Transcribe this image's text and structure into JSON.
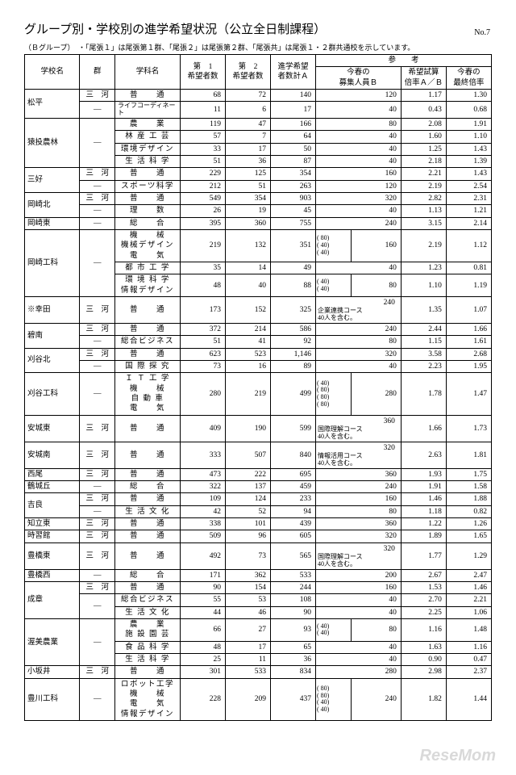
{
  "title": "グループ別・学校別の進学希望状況（公立全日制課程）",
  "page_no": "No.7",
  "note": "（Ｂグループ）　・「尾張１」は尾張第１群、「尾張２」は尾張第２群、「尾張共」は尾張１・２群共通校を示しています。",
  "headers": {
    "school": "学校名",
    "grp": "群",
    "dept": "学科名",
    "c1a": "第　1",
    "c1b": "希望者数",
    "c2a": "第　2",
    "c2b": "希望者数",
    "c3a": "進学希望",
    "c3b": "者数計Ａ",
    "ref": "参　　考",
    "r1a": "今春の",
    "r1b": "募集人員Ｂ",
    "r2a": "希望試算",
    "r2b": "倍率Ａ／Ｂ",
    "r3a": "今春の",
    "r3b": "最終倍率"
  },
  "watermark": "ReseMom",
  "rows": [
    {
      "school": "松平",
      "sr": 2,
      "grp": "三　河",
      "dept": "普　　通",
      "c1": "68",
      "c2": "72",
      "a": "140",
      "b": "120",
      "r": "1.17",
      "f": "1.30"
    },
    {
      "grp": "—",
      "dept": "ライフコーディネート",
      "dsm": 1,
      "c1": "11",
      "c2": "6",
      "a": "17",
      "b": "40",
      "r": "0.43",
      "f": "0.68"
    },
    {
      "school": "猿投農林",
      "sr": 4,
      "grp": "—",
      "gr": 4,
      "dept": "農　　業",
      "c1": "119",
      "c2": "47",
      "a": "166",
      "b": "80",
      "r": "2.08",
      "f": "1.91"
    },
    {
      "dept": "林 産 工 芸",
      "c1": "57",
      "c2": "7",
      "a": "64",
      "b": "40",
      "r": "1.60",
      "f": "1.10"
    },
    {
      "dept": "環境デザイン",
      "c1": "33",
      "c2": "17",
      "a": "50",
      "b": "40",
      "r": "1.25",
      "f": "1.43"
    },
    {
      "dept": "生 活 科 学",
      "c1": "51",
      "c2": "36",
      "a": "87",
      "b": "40",
      "r": "2.18",
      "f": "1.39"
    },
    {
      "school": "三好",
      "sr": 2,
      "grp": "三　河",
      "dept": "普　　通",
      "c1": "229",
      "c2": "125",
      "a": "354",
      "b": "160",
      "r": "2.21",
      "f": "1.43"
    },
    {
      "grp": "—",
      "dept": "スポーツ科学",
      "c1": "212",
      "c2": "51",
      "a": "263",
      "b": "120",
      "r": "2.19",
      "f": "2.54"
    },
    {
      "school": "岡崎北",
      "sr": 2,
      "grp": "三　河",
      "dept": "普　　通",
      "c1": "549",
      "c2": "354",
      "a": "903",
      "b": "320",
      "r": "2.82",
      "f": "2.31"
    },
    {
      "grp": "—",
      "dept": "理　　数",
      "c1": "26",
      "c2": "19",
      "a": "45",
      "b": "40",
      "r": "1.13",
      "f": "1.21"
    },
    {
      "school": "岡崎東",
      "grp": "—",
      "dept": "総　　合",
      "c1": "395",
      "c2": "360",
      "a": "755",
      "b": "240",
      "r": "3.15",
      "f": "2.14"
    },
    {
      "school": "岡崎工科",
      "sr": 3,
      "grp": "—",
      "gr": 3,
      "dept": "機　　械<br>機械デザイン<br>電　　気",
      "dtall": 1,
      "c1": "219",
      "c2": "132",
      "a": "351",
      "b": "160",
      "btxt": "( 80)<br>( 40)<br>( 40)",
      "r": "2.19",
      "f": "1.12"
    },
    {
      "dept": "都 市 工 学",
      "c1": "35",
      "c2": "14",
      "a": "49",
      "b": "40",
      "r": "1.23",
      "f": "0.81"
    },
    {
      "dept": "環 境 科 学<br>情報デザイン",
      "dtall": 1,
      "c1": "48",
      "c2": "40",
      "a": "88",
      "b": "80",
      "btxt": "( 40)<br>( 40)",
      "r": "1.10",
      "f": "1.19"
    },
    {
      "school": "※幸田",
      "grp": "三　河",
      "dept": "普　　通",
      "c1": "173",
      "c2": "152",
      "a": "325",
      "b": "240",
      "bsub": "企業連携コース<br>40人を含む。",
      "r": "1.35",
      "f": "1.07"
    },
    {
      "school": "碧南",
      "sr": 2,
      "grp": "三　河",
      "dept": "普　　通",
      "c1": "372",
      "c2": "214",
      "a": "586",
      "b": "240",
      "r": "2.44",
      "f": "1.66"
    },
    {
      "grp": "—",
      "dept": "総合ビジネス",
      "c1": "51",
      "c2": "41",
      "a": "92",
      "b": "80",
      "r": "1.15",
      "f": "1.61"
    },
    {
      "school": "刈谷北",
      "sr": 2,
      "grp": "三　河",
      "dept": "普　　通",
      "c1": "623",
      "c2": "523",
      "a": "1,146",
      "b": "320",
      "r": "3.58",
      "f": "2.68"
    },
    {
      "grp": "—",
      "dept": "国 際 探 究",
      "c1": "73",
      "c2": "16",
      "a": "89",
      "b": "40",
      "r": "2.23",
      "f": "1.95"
    },
    {
      "school": "刈谷工科",
      "grp": "—",
      "dept": "Ｉ Ｔ 工 学<br>機　　械<br>自 動 車<br>電　　気",
      "dtall": 1,
      "c1": "280",
      "c2": "219",
      "a": "499",
      "b": "280",
      "btxt": "( 40)<br>( 80)<br>( 80)<br>( 80)",
      "r": "1.78",
      "f": "1.47"
    },
    {
      "school": "安城東",
      "grp": "三　河",
      "dept": "普　　通",
      "c1": "409",
      "c2": "190",
      "a": "599",
      "b": "360",
      "bsub": "国際理解コース<br>40人を含む。",
      "r": "1.66",
      "f": "1.73"
    },
    {
      "school": "安城南",
      "grp": "三　河",
      "dept": "普　　通",
      "c1": "333",
      "c2": "507",
      "a": "840",
      "b": "320",
      "bsub": "情報活用コース<br>40人を含む。",
      "r": "2.63",
      "f": "1.81"
    },
    {
      "school": "西尾",
      "grp": "三　河",
      "dept": "普　　通",
      "c1": "473",
      "c2": "222",
      "a": "695",
      "b": "360",
      "r": "1.93",
      "f": "1.75"
    },
    {
      "school": "鶴城丘",
      "grp": "—",
      "dept": "総　　合",
      "c1": "322",
      "c2": "137",
      "a": "459",
      "b": "240",
      "r": "1.91",
      "f": "1.58"
    },
    {
      "school": "吉良",
      "sr": 2,
      "grp": "三　河",
      "dept": "普　　通",
      "c1": "109",
      "c2": "124",
      "a": "233",
      "b": "160",
      "r": "1.46",
      "f": "1.88"
    },
    {
      "grp": "—",
      "dept": "生 活 文 化",
      "c1": "42",
      "c2": "52",
      "a": "94",
      "b": "80",
      "r": "1.18",
      "f": "0.82"
    },
    {
      "school": "知立東",
      "grp": "三　河",
      "dept": "普　　通",
      "c1": "338",
      "c2": "101",
      "a": "439",
      "b": "360",
      "r": "1.22",
      "f": "1.26"
    },
    {
      "school": "時習館",
      "grp": "三　河",
      "dept": "普　　通",
      "c1": "509",
      "c2": "96",
      "a": "605",
      "b": "320",
      "r": "1.89",
      "f": "1.65"
    },
    {
      "school": "豊橋東",
      "grp": "三　河",
      "dept": "普　　通",
      "c1": "492",
      "c2": "73",
      "a": "565",
      "b": "320",
      "bsub": "国際理解コース<br>40人を含む。",
      "r": "1.77",
      "f": "1.29"
    },
    {
      "school": "豊橋西",
      "grp": "—",
      "dept": "総　　合",
      "c1": "171",
      "c2": "362",
      "a": "533",
      "b": "200",
      "r": "2.67",
      "f": "2.47"
    },
    {
      "school": "成章",
      "sr": 3,
      "grp": "三　河",
      "dept": "普　　通",
      "c1": "90",
      "c2": "154",
      "a": "244",
      "b": "160",
      "r": "1.53",
      "f": "1.46"
    },
    {
      "grp": "—",
      "gr": 2,
      "dept": "総合ビジネス",
      "c1": "55",
      "c2": "53",
      "a": "108",
      "b": "40",
      "r": "2.70",
      "f": "2.21"
    },
    {
      "dept": "生 活 文 化",
      "c1": "44",
      "c2": "46",
      "a": "90",
      "b": "40",
      "r": "2.25",
      "f": "1.06"
    },
    {
      "school": "渥美農業",
      "sr": 3,
      "grp": "—",
      "gr": 3,
      "dept": "農　　業<br>施 設 園 芸",
      "dtall": 1,
      "c1": "66",
      "c2": "27",
      "a": "93",
      "b": "80",
      "btxt": "( 40)<br>( 40)",
      "r": "1.16",
      "f": "1.48"
    },
    {
      "dept": "食 品 科 学",
      "c1": "48",
      "c2": "17",
      "a": "65",
      "b": "40",
      "r": "1.63",
      "f": "1.16"
    },
    {
      "dept": "生 活 科 学",
      "c1": "25",
      "c2": "11",
      "a": "36",
      "b": "40",
      "r": "0.90",
      "f": "0.47"
    },
    {
      "school": "小坂井",
      "grp": "三　河",
      "dept": "普　　通",
      "c1": "301",
      "c2": "533",
      "a": "834",
      "b": "280",
      "r": "2.98",
      "f": "2.37"
    },
    {
      "school": "豊川工科",
      "grp": "—",
      "dept": "ロボット工学<br>機　　械<br>電　　気<br>情報デザイン",
      "dtall": 1,
      "c1": "228",
      "c2": "209",
      "a": "437",
      "b": "240",
      "btxt": "( 80)<br>( 80)<br>( 40)<br>( 40)",
      "r": "1.82",
      "f": "1.44"
    }
  ]
}
